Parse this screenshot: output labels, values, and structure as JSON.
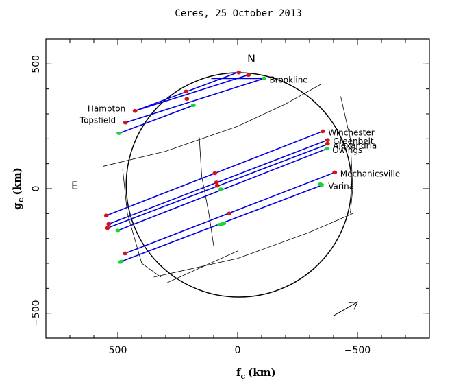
{
  "chart_data": {
    "type": "scatter",
    "title": "Ceres, 25 October 2013",
    "xlabel_main": "f",
    "xlabel_sub": "c",
    "xlabel_unit": "(km)",
    "ylabel_main": "g",
    "ylabel_sub": "c",
    "ylabel_unit": "(km)",
    "xlim": [
      800,
      -800
    ],
    "ylim": [
      -600,
      600
    ],
    "x_ticks": [
      500,
      0,
      -500
    ],
    "x_tick_labels": [
      "500",
      "0",
      "−500"
    ],
    "y_ticks": [
      500,
      0,
      -500
    ],
    "y_tick_labels": [
      "500",
      "0",
      "−500"
    ],
    "direction_labels": {
      "north": "N",
      "east": "E"
    },
    "limb": {
      "cx": -5,
      "cy": 15,
      "rx": 470,
      "ry": 450
    },
    "chords": [
      {
        "name": "Brookline",
        "x1": 110,
        "y1": 442,
        "x2": -110,
        "y2": 442,
        "segments": [
          [
            -5,
            466,
            -45,
            456
          ]
        ],
        "label_side": "right"
      },
      {
        "name": "",
        "x1": 428,
        "y1": 312,
        "x2": 0,
        "y2": 466,
        "segments": [],
        "label_side": "none"
      },
      {
        "name": "Hampton",
        "x1": 428,
        "y1": 312,
        "x2": -40,
        "y2": 455,
        "segments": [
          [
            428,
            312,
            -40,
            455
          ]
        ],
        "label_side": "left"
      },
      {
        "name": "Topsfield",
        "x1": 468,
        "y1": 265,
        "x2": -110,
        "y2": 442,
        "segments": [
          [
            468,
            265,
            -110,
            442
          ]
        ],
        "label_side": "left"
      },
      {
        "name": "",
        "x1": 495,
        "y1": 222,
        "x2": 185,
        "y2": 334,
        "segments": [],
        "label_side": "none"
      },
      {
        "name": "Winchester",
        "x1": 548,
        "y1": -108,
        "x2": -355,
        "y2": 230,
        "segments": [],
        "label_side": "right"
      },
      {
        "name": "Greenbelt",
        "x1": 538,
        "y1": -142,
        "x2": -375,
        "y2": 195,
        "segments": [],
        "label_side": "right"
      },
      {
        "name": "Alexandria",
        "x1": 543,
        "y1": -158,
        "x2": -375,
        "y2": 178,
        "segments": [],
        "label_side": "right"
      },
      {
        "name": "Owings",
        "x1": 500,
        "y1": -168,
        "x2": -372,
        "y2": 160,
        "segments": [],
        "label_side": "right"
      },
      {
        "name": "Mechanicsville",
        "x1": 470,
        "y1": -260,
        "x2": -405,
        "y2": 65,
        "segments": [],
        "label_side": "right"
      },
      {
        "name": "Varina",
        "x1": 485,
        "y1": -292,
        "x2": -355,
        "y2": 15,
        "segments": [],
        "label_side": "right"
      }
    ],
    "red_points": [
      [
        -5,
        466
      ],
      [
        -45,
        456
      ],
      [
        428,
        312
      ],
      [
        215,
        390
      ],
      [
        212,
        360
      ],
      [
        468,
        265
      ],
      [
        -355,
        230
      ],
      [
        -375,
        195
      ],
      [
        -375,
        180
      ],
      [
        548,
        -108
      ],
      [
        538,
        -142
      ],
      [
        543,
        -158
      ],
      [
        95,
        62
      ],
      [
        88,
        25
      ],
      [
        85,
        12
      ],
      [
        -405,
        65
      ],
      [
        35,
        -100
      ],
      [
        470,
        -260
      ]
    ],
    "green_points": [
      [
        -110,
        442
      ],
      [
        185,
        334
      ],
      [
        495,
        222
      ],
      [
        -372,
        160
      ],
      [
        500,
        -168
      ],
      [
        70,
        -2
      ],
      [
        -350,
        15
      ],
      [
        -345,
        18
      ],
      [
        65,
        -142
      ],
      [
        58,
        -140
      ],
      [
        75,
        -145
      ],
      [
        485,
        -292
      ],
      [
        490,
        -295
      ]
    ],
    "grid_lines": [
      {
        "pts": [
          [
            560,
            90
          ],
          [
            300,
            150
          ],
          [
            0,
            250
          ],
          [
            -200,
            340
          ],
          [
            -350,
            420
          ]
        ]
      },
      {
        "pts": [
          [
            350,
            -355
          ],
          [
            0,
            -280
          ],
          [
            -300,
            -175
          ],
          [
            -480,
            -100
          ]
        ]
      },
      {
        "pts": [
          [
            160,
            205
          ],
          [
            150,
            50
          ],
          [
            120,
            -100
          ],
          [
            100,
            -230
          ]
        ]
      },
      {
        "pts": [
          [
            -430,
            370
          ],
          [
            -470,
            200
          ],
          [
            -480,
            0
          ],
          [
            -470,
            -100
          ]
        ]
      },
      {
        "pts": [
          [
            480,
            80
          ],
          [
            460,
            -100
          ],
          [
            400,
            -300
          ],
          [
            320,
            -355
          ]
        ]
      },
      {
        "pts": [
          [
            300,
            -380
          ],
          [
            0,
            -250
          ]
        ]
      }
    ],
    "colors": {
      "chord": "#0000e6",
      "red": "#d3121a",
      "green": "#18d43a",
      "axis": "#000000"
    },
    "arrow": {
      "x1": -400,
      "y1": -510,
      "x2": -500,
      "y2": -455
    }
  }
}
